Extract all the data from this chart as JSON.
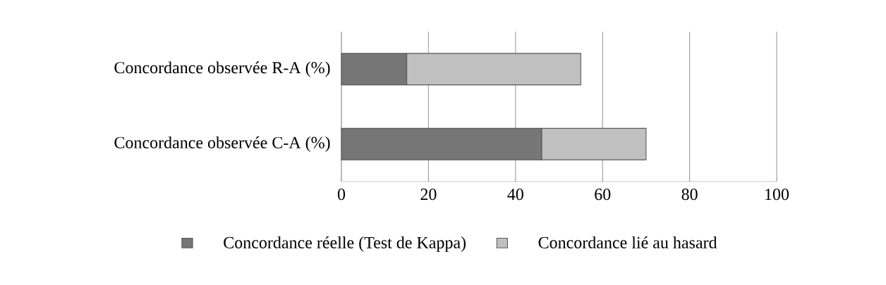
{
  "chart_data": {
    "type": "bar",
    "orientation": "horizontal",
    "stacked": true,
    "categories": [
      "Concordance observée R-A (%)",
      "Concordance observée C-A (%)"
    ],
    "series": [
      {
        "name": "Concordance réelle (Test de Kappa)",
        "color": "#767676",
        "values": [
          15,
          46
        ]
      },
      {
        "name": "Concordance lié au hasard",
        "color": "#c0c0c0",
        "values": [
          40,
          24
        ]
      }
    ],
    "xlim": [
      0,
      100
    ],
    "xticks": [
      0,
      20,
      40,
      60,
      80,
      100
    ],
    "grid": "x",
    "legend": "bottom"
  }
}
